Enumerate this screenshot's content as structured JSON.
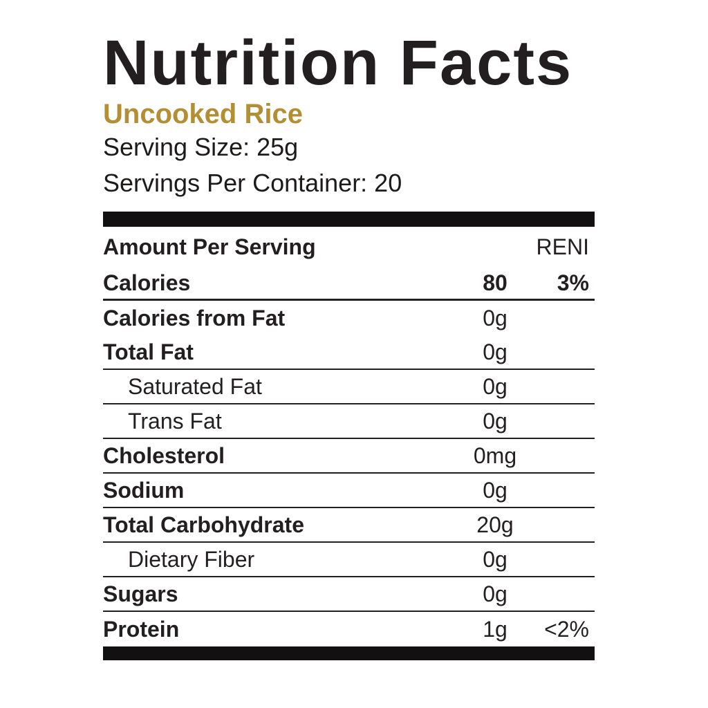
{
  "title": "Nutrition Facts",
  "subtitle": "Uncooked Rice",
  "serving_size": "Serving Size: 25g",
  "servings_per_container": "Servings Per Container: 20",
  "colors": {
    "ink": "#231f20",
    "bar_black": "#121010",
    "accent_gold": "#b28e35"
  },
  "table": {
    "header": {
      "amount_per_serving": "Amount Per Serving",
      "reni": "RENI"
    },
    "rows": [
      {
        "label": "Calories",
        "amount": "80",
        "pct": "3%",
        "bold": true,
        "indent": false,
        "values_bold": true,
        "divider": "thick"
      },
      {
        "label": "Calories from Fat",
        "amount": "0g",
        "pct": "",
        "bold": true,
        "indent": false,
        "values_bold": false,
        "divider": "none"
      },
      {
        "label": "Total Fat",
        "amount": "0g",
        "pct": "",
        "bold": true,
        "indent": false,
        "values_bold": false,
        "divider": "thin"
      },
      {
        "label": "Saturated Fat",
        "amount": "0g",
        "pct": "",
        "bold": false,
        "indent": true,
        "values_bold": false,
        "divider": "thin"
      },
      {
        "label": "Trans Fat",
        "amount": "0g",
        "pct": "",
        "bold": false,
        "indent": true,
        "values_bold": false,
        "divider": "thin"
      },
      {
        "label": "Cholesterol",
        "amount": "0mg",
        "pct": "",
        "bold": true,
        "indent": false,
        "values_bold": false,
        "divider": "thin"
      },
      {
        "label": "Sodium",
        "amount": "0g",
        "pct": "",
        "bold": true,
        "indent": false,
        "values_bold": false,
        "divider": "thin"
      },
      {
        "label": "Total Carbohydrate",
        "amount": "20g",
        "pct": "",
        "bold": true,
        "indent": false,
        "values_bold": false,
        "divider": "thin"
      },
      {
        "label": "Dietary Fiber",
        "amount": "0g",
        "pct": "",
        "bold": false,
        "indent": true,
        "values_bold": false,
        "divider": "thin"
      },
      {
        "label": "Sugars",
        "amount": "0g",
        "pct": "",
        "bold": true,
        "indent": false,
        "values_bold": false,
        "divider": "thin"
      },
      {
        "label": "Protein",
        "amount": "1g",
        "pct": "<2%",
        "bold": true,
        "indent": false,
        "values_bold": false,
        "divider": "none"
      }
    ]
  }
}
